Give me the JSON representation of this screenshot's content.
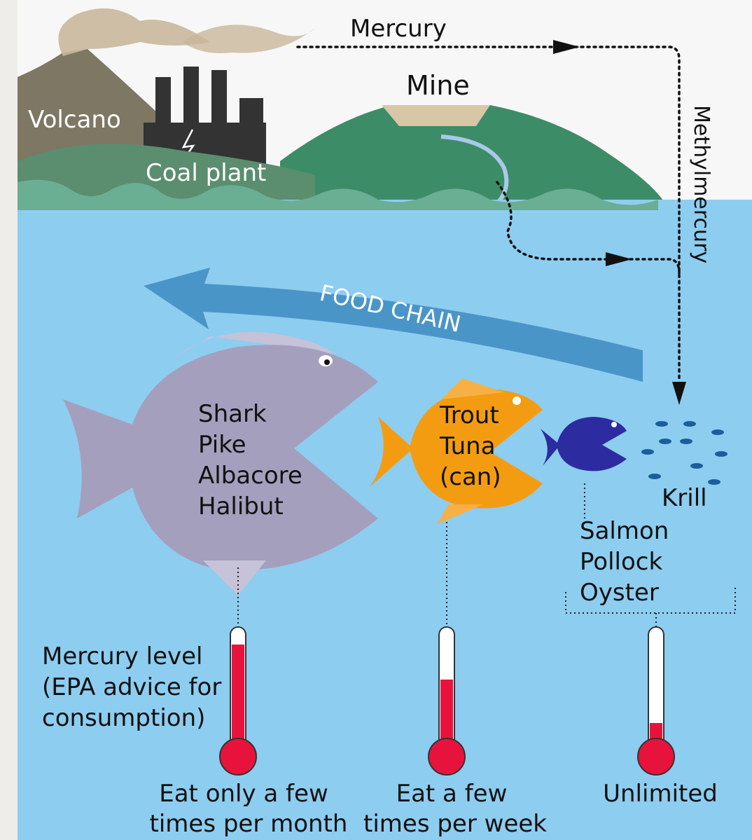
{
  "labels": {
    "mercury": "Mercury",
    "mine": "Mine",
    "volcano": "Volcano",
    "coal_plant": "Coal plant",
    "methylmercury": "Methylmercury",
    "food_chain": "FOOD CHAIN",
    "krill": "Krill"
  },
  "fish_groups": [
    {
      "species": [
        "Shark",
        "Pike",
        "Albacore",
        "Halibut"
      ],
      "advice": [
        "Eat only a few",
        "times per month"
      ]
    },
    {
      "species": [
        "Trout",
        "Tuna",
        "(can)"
      ],
      "advice": [
        "Eat a few",
        "times per week"
      ]
    },
    {
      "species": [
        "Salmon",
        "Pollock",
        "Oyster"
      ],
      "advice": [
        "Unlimited"
      ]
    }
  ],
  "legend": [
    "Mercury level",
    "(EPA advice for",
    "consumption)"
  ]
}
